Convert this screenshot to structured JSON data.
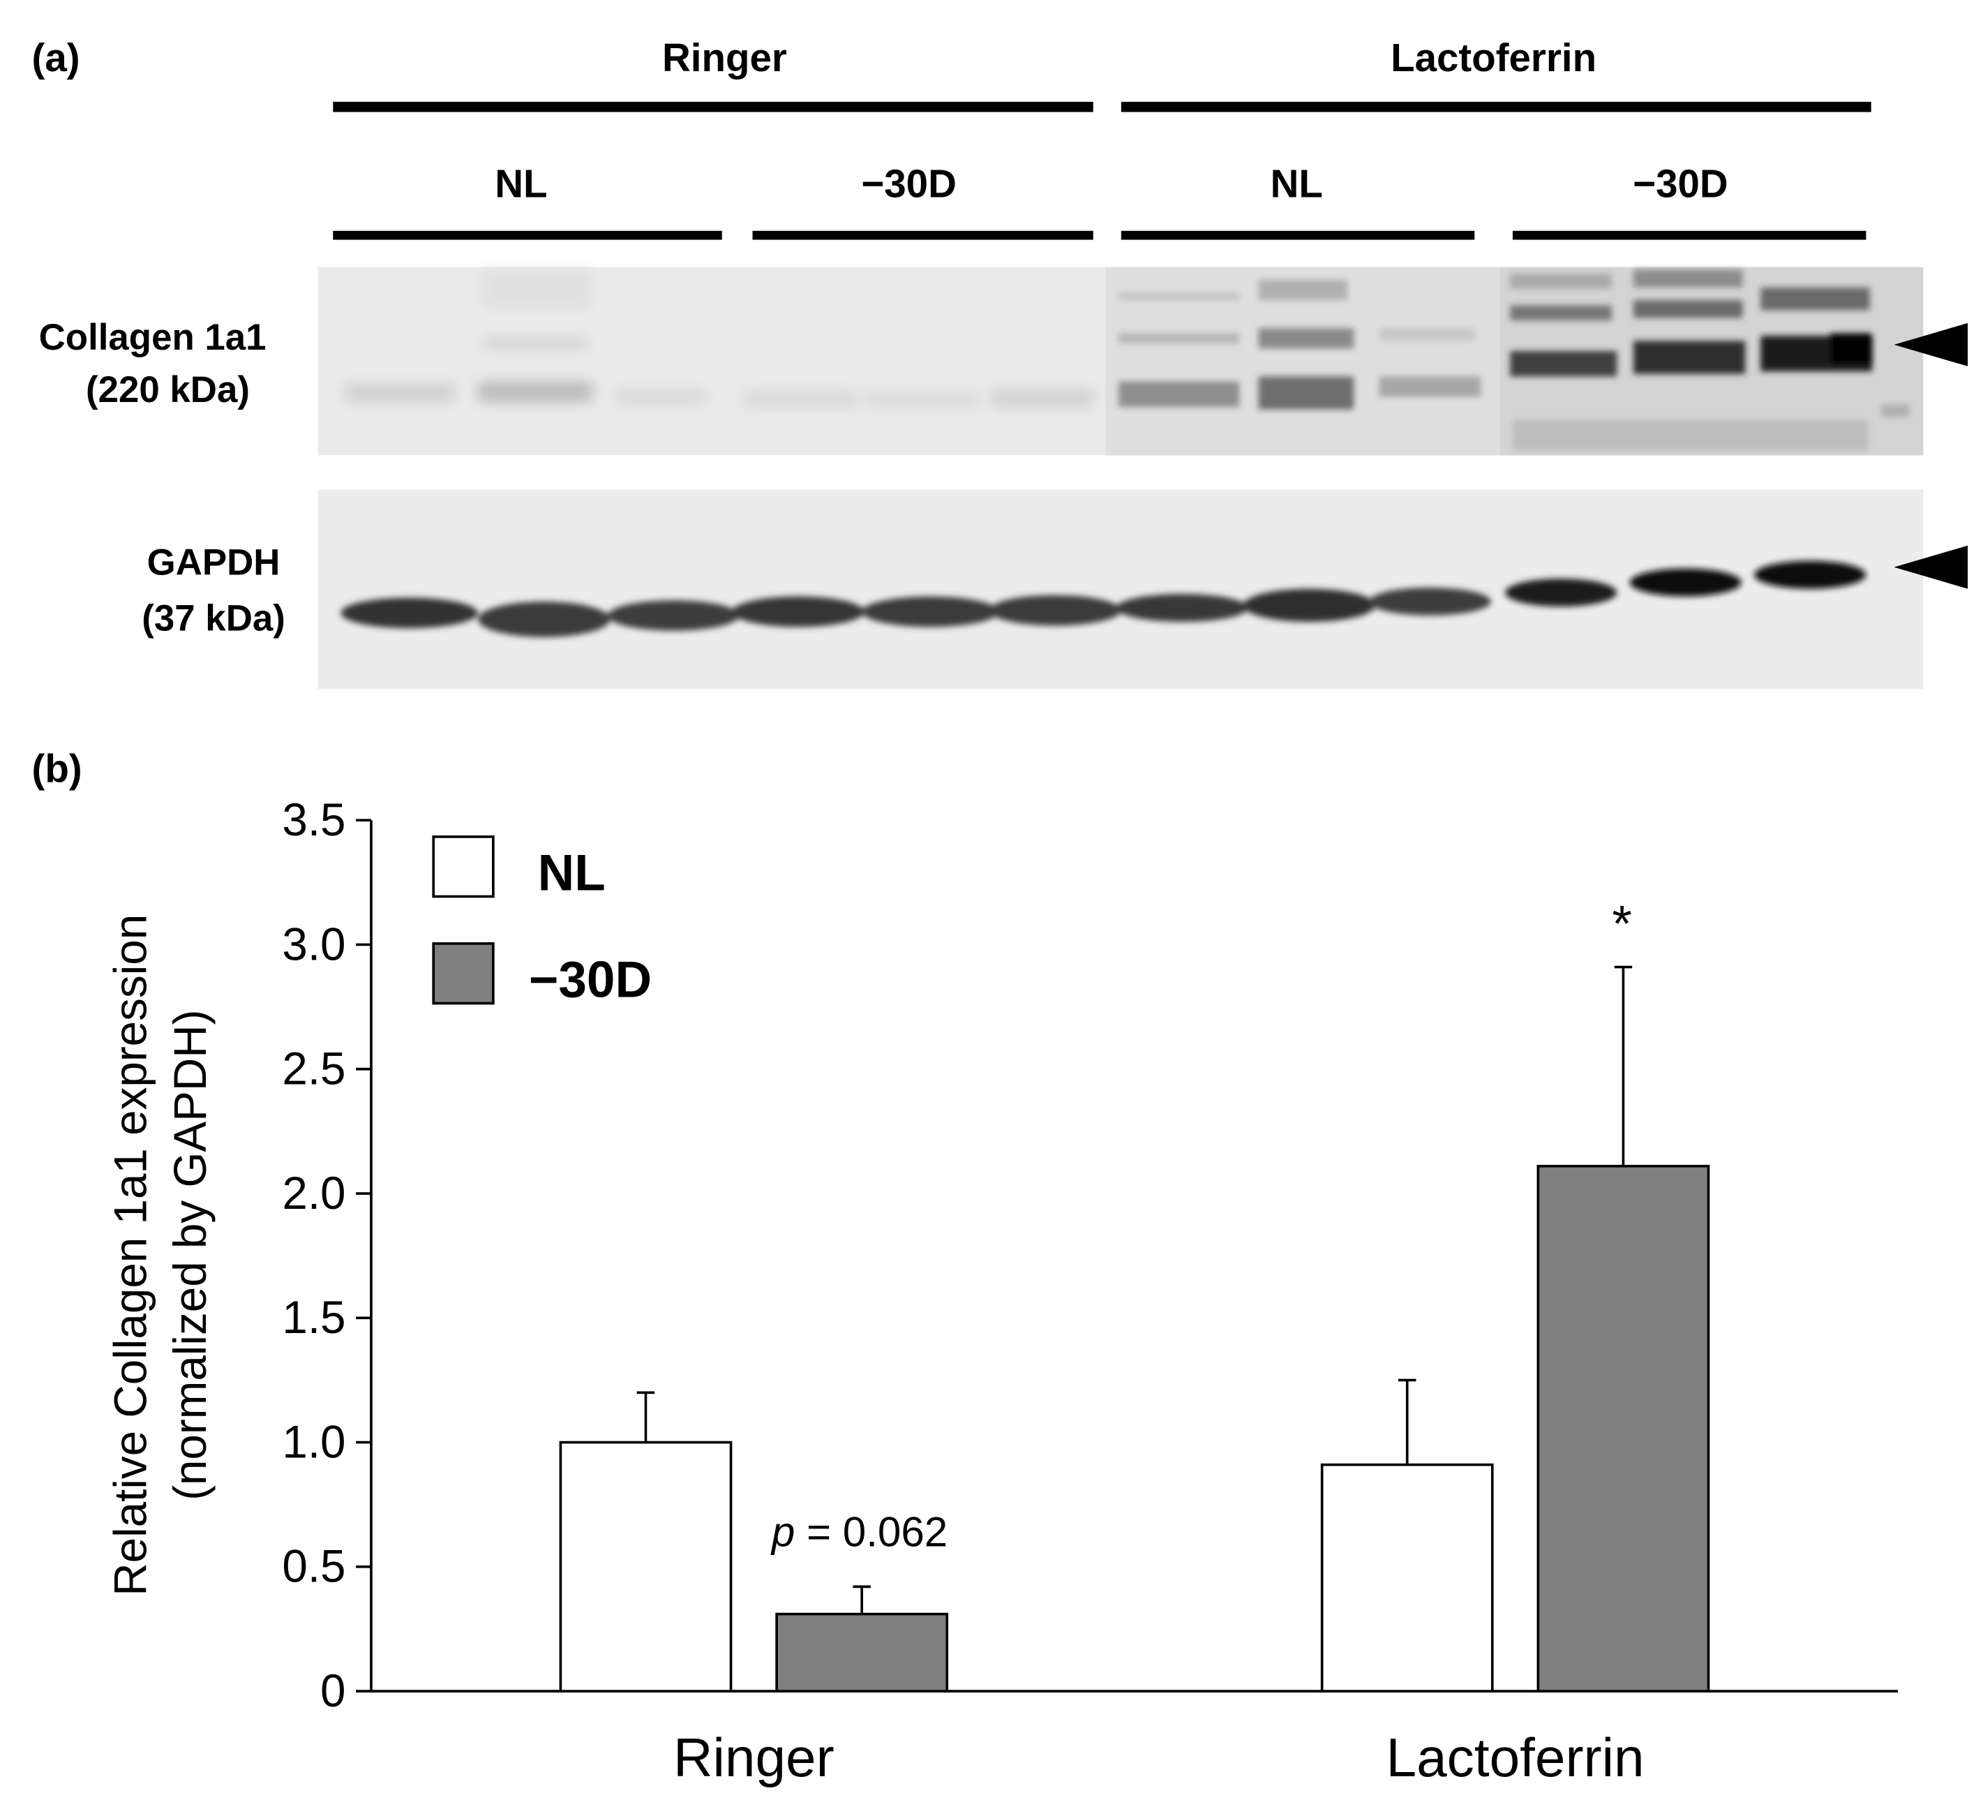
{
  "panel_a": {
    "label": "(a)",
    "groups": [
      {
        "name": "Ringer",
        "subgroups": [
          "NL",
          "−30D"
        ]
      },
      {
        "name": "Lactoferrin",
        "subgroups": [
          "NL",
          "−30D"
        ]
      }
    ],
    "blots": [
      {
        "protein": "Collagen 1a1",
        "size": "(220 kDa)"
      },
      {
        "protein": "GAPDH",
        "size": "(37 kDa)"
      }
    ]
  },
  "panel_b": {
    "label": "(b)",
    "annotation_p": "p",
    "annotation_rest": " = 0.062",
    "significance_marker": "*"
  },
  "chart_data": {
    "type": "bar",
    "title": "",
    "categories": [
      "Ringer",
      "Lactoferrin"
    ],
    "series": [
      {
        "name": "NL",
        "values": [
          1.0,
          0.91
        ],
        "errors": [
          0.2,
          0.34
        ],
        "color": "#ffffff"
      },
      {
        "name": "−30D",
        "values": [
          0.31,
          2.11
        ],
        "errors": [
          0.11,
          0.8
        ],
        "color": "#808080"
      }
    ],
    "ylabel": "Relative Collagen 1a1 expression",
    "ylabel2": "(normalized by GAPDH)",
    "ylim": [
      0,
      3.5
    ],
    "yticks": [
      "0",
      "0.5",
      "1.0",
      "1.5",
      "2.0",
      "2.5",
      "3.0",
      "3.5"
    ],
    "legend_position": "top-left",
    "grid": false
  }
}
